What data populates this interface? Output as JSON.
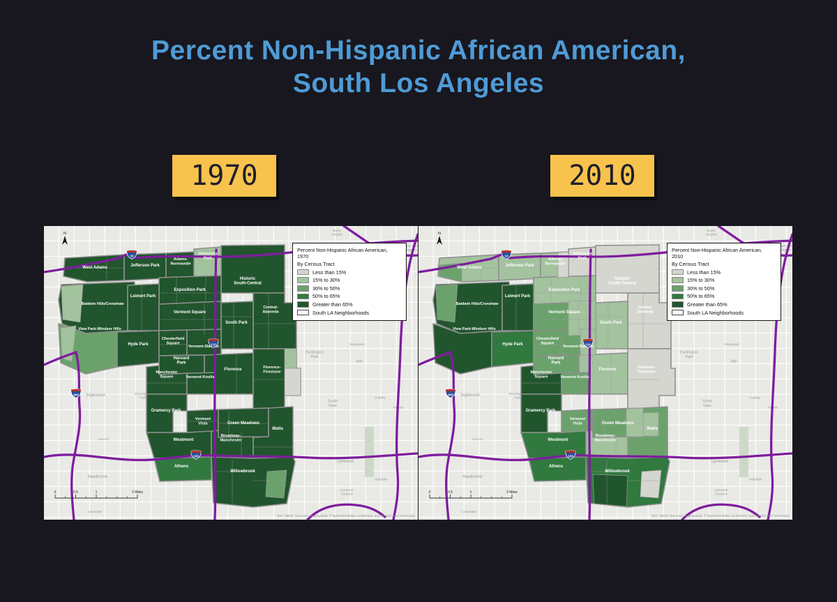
{
  "page": {
    "background": "#18171f",
    "title": {
      "line1": "Percent Non-Hispanic African American,",
      "line2": "South Los Angeles",
      "color": "#4f9bd6"
    }
  },
  "year_chips": [
    {
      "label": "1970",
      "bg": "#f8c34d"
    },
    {
      "label": "2010",
      "bg": "#f8c34d"
    }
  ],
  "legend": {
    "title_prefix": "Percent Non-Hispanic African American,",
    "by_line": "By Census Tract",
    "items": [
      {
        "label": "Less than 15%",
        "class": "lt15",
        "color": "#d6d6d0"
      },
      {
        "label": "15% to 30%",
        "class": "p30",
        "color": "#a3c29e"
      },
      {
        "label": "30% to 50%",
        "class": "g30",
        "color": "#6ba26c"
      },
      {
        "label": "50% to 65%",
        "class": "g50",
        "color": "#31793f"
      },
      {
        "label": "Greater than 65%",
        "class": "g65",
        "color": "#21552d"
      },
      {
        "label": "South LA Neighborhoods",
        "class": "boundary",
        "color": "#ffffff"
      }
    ]
  },
  "neighborhoods": [
    {
      "id": "historic-south-central",
      "name": "Historic South-Central",
      "class_1970": "g65",
      "class_2010": "lt15"
    },
    {
      "id": "university-park",
      "name": "University Park",
      "class_1970": "p30",
      "class_2010": "lt15"
    },
    {
      "id": "west-adams",
      "name": "West Adams",
      "class_1970": "g65",
      "class_2010": "p30"
    },
    {
      "id": "jefferson-park",
      "name": "Jefferson Park",
      "class_1970": "g65",
      "class_2010": "p30"
    },
    {
      "id": "adams-normandie",
      "name": "Adams-Normandie",
      "class_1970": "g65",
      "class_2010": "p30"
    },
    {
      "id": "exposition-park",
      "name": "Exposition Park",
      "class_1970": "g65",
      "class_2010": "p30"
    },
    {
      "id": "baldwin-hills",
      "name": "Baldwin Hills/Crenshaw",
      "class_1970": "g65",
      "class_2010": "g65"
    },
    {
      "id": "leimert-park",
      "name": "Leimert Park",
      "class_1970": "g65",
      "class_2010": "g65"
    },
    {
      "id": "vermont-square",
      "name": "Vermont Square",
      "class_1970": "g65",
      "class_2010": "g30"
    },
    {
      "id": "central-alameda",
      "name": "Central-Alameda",
      "class_1970": "g65",
      "class_2010": "lt15"
    },
    {
      "id": "south-park",
      "name": "South Park",
      "class_1970": "g65",
      "class_2010": "p30"
    },
    {
      "id": "view-park",
      "name": "View Park-Windsor Hills",
      "class_1970": "g30",
      "class_2010": "g65"
    },
    {
      "id": "hyde-park",
      "name": "Hyde Park",
      "class_1970": "g65",
      "class_2010": "g50"
    },
    {
      "id": "chesterfield-square",
      "name": "Chesterfield Square",
      "class_1970": "g65",
      "class_2010": "g30"
    },
    {
      "id": "vermont-slauson",
      "name": "Vermont-Slauson",
      "class_1970": "g65",
      "class_2010": "g30"
    },
    {
      "id": "harvard-park",
      "name": "Harvard Park",
      "class_1970": "g65",
      "class_2010": "g30"
    },
    {
      "id": "florence",
      "name": "Florence",
      "class_1970": "g65",
      "class_2010": "p30"
    },
    {
      "id": "manchester-square",
      "name": "Manchester Square",
      "class_1970": "g65",
      "class_2010": "g65"
    },
    {
      "id": "vermont-knolls",
      "name": "Vermont Knolls",
      "class_1970": "g65",
      "class_2010": "g30"
    },
    {
      "id": "florence-firestone",
      "name": "Florence-Firestone",
      "class_1970": "g65",
      "class_2010": "lt15"
    },
    {
      "id": "gramercy-park",
      "name": "Gramercy Park",
      "class_1970": "g65",
      "class_2010": "g65"
    },
    {
      "id": "vermont-vista",
      "name": "Vermont Vista",
      "class_1970": "g65",
      "class_2010": "g30"
    },
    {
      "id": "westmont",
      "name": "Westmont",
      "class_1970": "g65",
      "class_2010": "g50"
    },
    {
      "id": "green-meadows",
      "name": "Green Meadows",
      "class_1970": "g65",
      "class_2010": "g30"
    },
    {
      "id": "watts",
      "name": "Watts",
      "class_1970": "g65",
      "class_2010": "g30"
    },
    {
      "id": "broadway-manchester",
      "name": "Broadway-Manchester",
      "class_1970": "g65",
      "class_2010": "p30"
    },
    {
      "id": "athens",
      "name": "Athens",
      "class_1970": "g50",
      "class_2010": "g50"
    },
    {
      "id": "willowbrook",
      "name": "Willowbrook",
      "class_1970": "g65",
      "class_2010": "g50"
    }
  ],
  "base_labels": [
    {
      "id": "boyle-heights",
      "text": "Boyle Heights"
    },
    {
      "id": "east-los-angeles",
      "text": "East Los Angeles"
    },
    {
      "id": "ladera-heights",
      "text": "Ladera Heights"
    },
    {
      "id": "inglewood",
      "text": "Inglewood"
    },
    {
      "id": "morningside-park",
      "text": "Morningside Park"
    },
    {
      "id": "lennox",
      "text": "Lennox"
    },
    {
      "id": "hawthorne",
      "text": "Hawthorne"
    },
    {
      "id": "lawndale",
      "text": "Lawndale"
    },
    {
      "id": "huntington-park",
      "text": "Huntington Park"
    },
    {
      "id": "maywood",
      "text": "Maywood"
    },
    {
      "id": "bell",
      "text": "Bell"
    },
    {
      "id": "cudahy",
      "text": "Cudahy"
    },
    {
      "id": "south-gate",
      "text": "South Gate"
    },
    {
      "id": "vinvale",
      "text": "Vinvale"
    },
    {
      "id": "lynwood",
      "text": "Lynwood"
    },
    {
      "id": "lynwood-gardens",
      "text": "Lynwood Gardens"
    },
    {
      "id": "hollydale",
      "text": "Hollydale"
    }
  ],
  "map_furniture": {
    "north_label": "N",
    "scale_labels": [
      "0",
      "0.5",
      "1",
      "2 Miles"
    ],
    "shields": [
      {
        "num": "10"
      },
      {
        "num": "110"
      },
      {
        "num": "105"
      },
      {
        "num": "405"
      }
    ],
    "freeway_color": "#7e1d9e",
    "attribution": "Esri, HERE, DeLorme, Mapmyindia, © OpenStreetMap contributors, and the GIS user community"
  }
}
